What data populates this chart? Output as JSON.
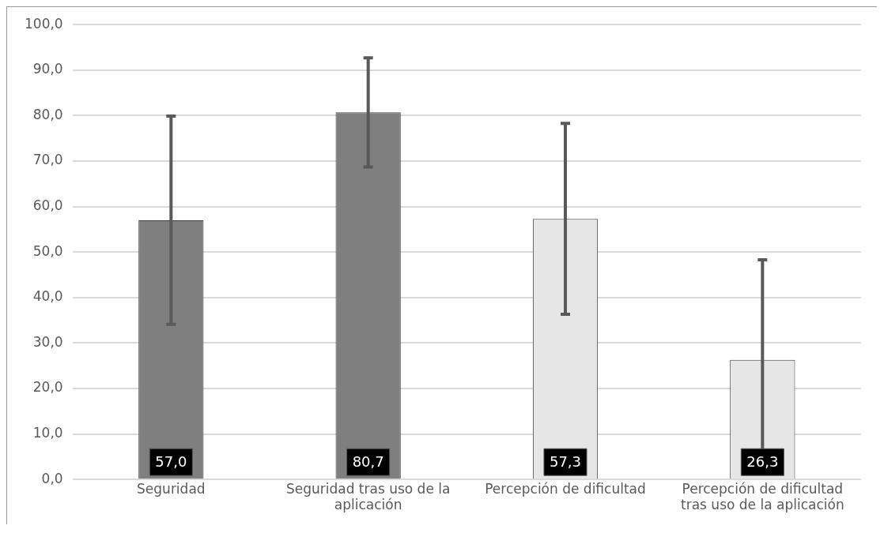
{
  "chart_data": {
    "type": "bar",
    "categories": [
      "Seguridad",
      "Seguridad tras uso de la aplicación",
      "Percepción de dificultad",
      "Percepción de dificultad tras uso de la aplicación"
    ],
    "values": [
      57.0,
      80.7,
      57.3,
      26.3
    ],
    "colors": [
      "#7f7f7f",
      "#7f7f7f",
      "#e6e6e6",
      "#e6e6e6"
    ],
    "errors": [
      22.9,
      12,
      21,
      22
    ],
    "value_labels": [
      "57,0",
      "80,7",
      "57,3",
      "26,3"
    ],
    "ylim": [
      0,
      100
    ],
    "yticks": [
      {
        "value": 0,
        "label": "0,0"
      },
      {
        "value": 10,
        "label": "10,0"
      },
      {
        "value": 20,
        "label": "20,0"
      },
      {
        "value": 30,
        "label": "30,0"
      },
      {
        "value": 40,
        "label": "40,0"
      },
      {
        "value": 50,
        "label": "50,0"
      },
      {
        "value": 60,
        "label": "60,0"
      },
      {
        "value": 70,
        "label": "70,0"
      },
      {
        "value": 80,
        "label": "80,0"
      },
      {
        "value": 90,
        "label": "90,0"
      },
      {
        "value": 100,
        "label": "100,0"
      }
    ],
    "grid": "y"
  }
}
